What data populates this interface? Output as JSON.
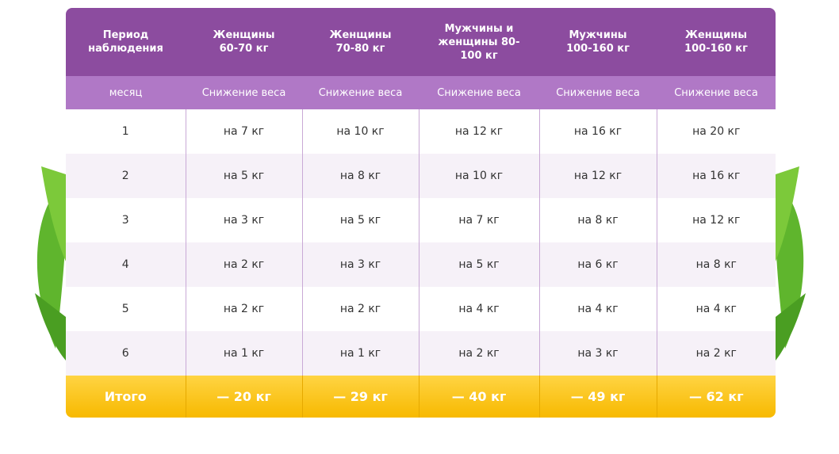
{
  "table": {
    "header": [
      "Период наблюдения",
      "Женщины 60-70 кг",
      "Женщины 70-80 кг",
      "Мужчины и женщины 80-100 кг",
      "Мужчины 100-160 кг",
      "Женщины 100-160 кг"
    ],
    "subheader": [
      "месяц",
      "Снижение веса",
      "Снижение веса",
      "Снижение веса",
      "Снижение веса",
      "Снижение веса"
    ],
    "rows": [
      [
        "1",
        "на 7 кг",
        "на 10 кг",
        "на 12 кг",
        "на 16 кг",
        "на 20 кг"
      ],
      [
        "2",
        "на 5 кг",
        "на 8 кг",
        "на 10 кг",
        "на 12 кг",
        "на 16 кг"
      ],
      [
        "3",
        "на 3 кг",
        "на 5 кг",
        "на 7 кг",
        "на 8 кг",
        "на 12 кг"
      ],
      [
        "4",
        "на 2 кг",
        "на 3 кг",
        "на 5 кг",
        "на 6 кг",
        "на 8 кг"
      ],
      [
        "5",
        "на 2 кг",
        "на 2 кг",
        "на 4 кг",
        "на 4 кг",
        "на 4 кг"
      ],
      [
        "6",
        "на 1 кг",
        "на 1 кг",
        "на 2 кг",
        "на 3 кг",
        "на 2 кг"
      ]
    ],
    "total": [
      "Итого",
      "— 20 кг",
      "— 29 кг",
      "— 40 кг",
      "— 49 кг",
      "— 62 кг"
    ]
  }
}
